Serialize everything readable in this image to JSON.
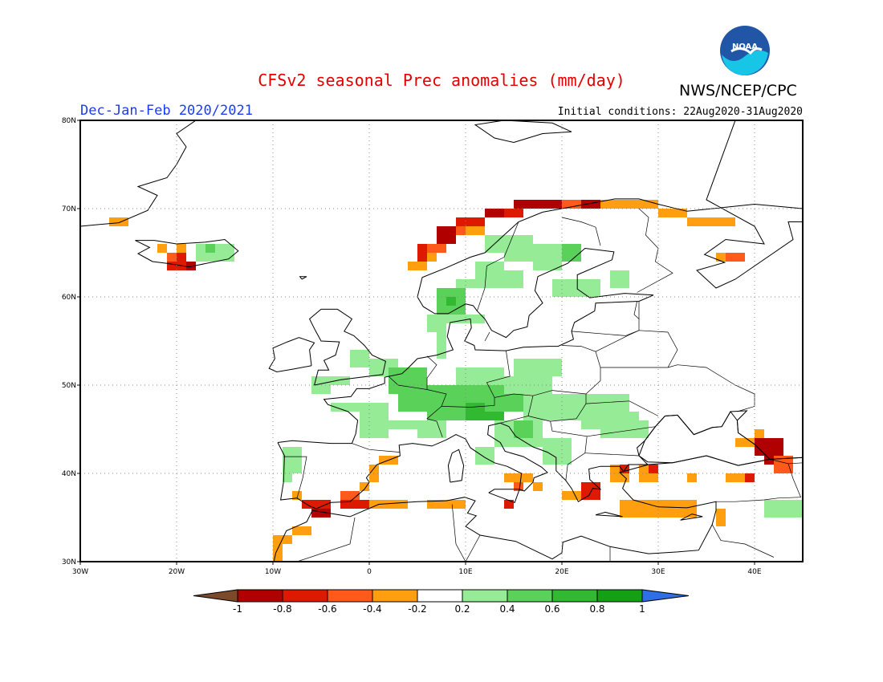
{
  "title": "CFSv2 seasonal Prec anomalies (mm/day)",
  "agency": "NWS/NCEP/CPC",
  "logo_text": "NOAA",
  "season": "Dec-Jan-Feb 2020/2021",
  "initial_conditions": "Initial conditions: 22Aug2020-31Aug2020",
  "map": {
    "lon_range": [
      -30,
      45
    ],
    "lat_range": [
      30,
      80
    ],
    "lon_ticks": [
      "30W",
      "20W",
      "10W",
      "0",
      "10E",
      "20E",
      "30E",
      "40E"
    ],
    "lat_ticks": [
      "80N",
      "70N",
      "60N",
      "50N",
      "40N",
      "30N"
    ],
    "grid": "dotted"
  },
  "colorbar": {
    "labels": [
      "-1",
      "-0.8",
      "-0.6",
      "-0.4",
      "-0.2",
      "0.2",
      "0.4",
      "0.6",
      "0.8",
      "1"
    ],
    "colors": [
      "#7a4a2a",
      "#b00000",
      "#dd1a00",
      "#ff5a1a",
      "#ff9f10",
      "#ffffff",
      "#96eb96",
      "#5ad25a",
      "#32b932",
      "#14a014",
      "#2e6fe6"
    ]
  },
  "anomaly_colors": {
    "dark_red": "#b00000",
    "red": "#dd1a00",
    "orange_red": "#ff5a1a",
    "orange": "#ff9f10",
    "light_green": "#96eb96",
    "green": "#5ad25a",
    "dark_green": "#32b932"
  }
}
